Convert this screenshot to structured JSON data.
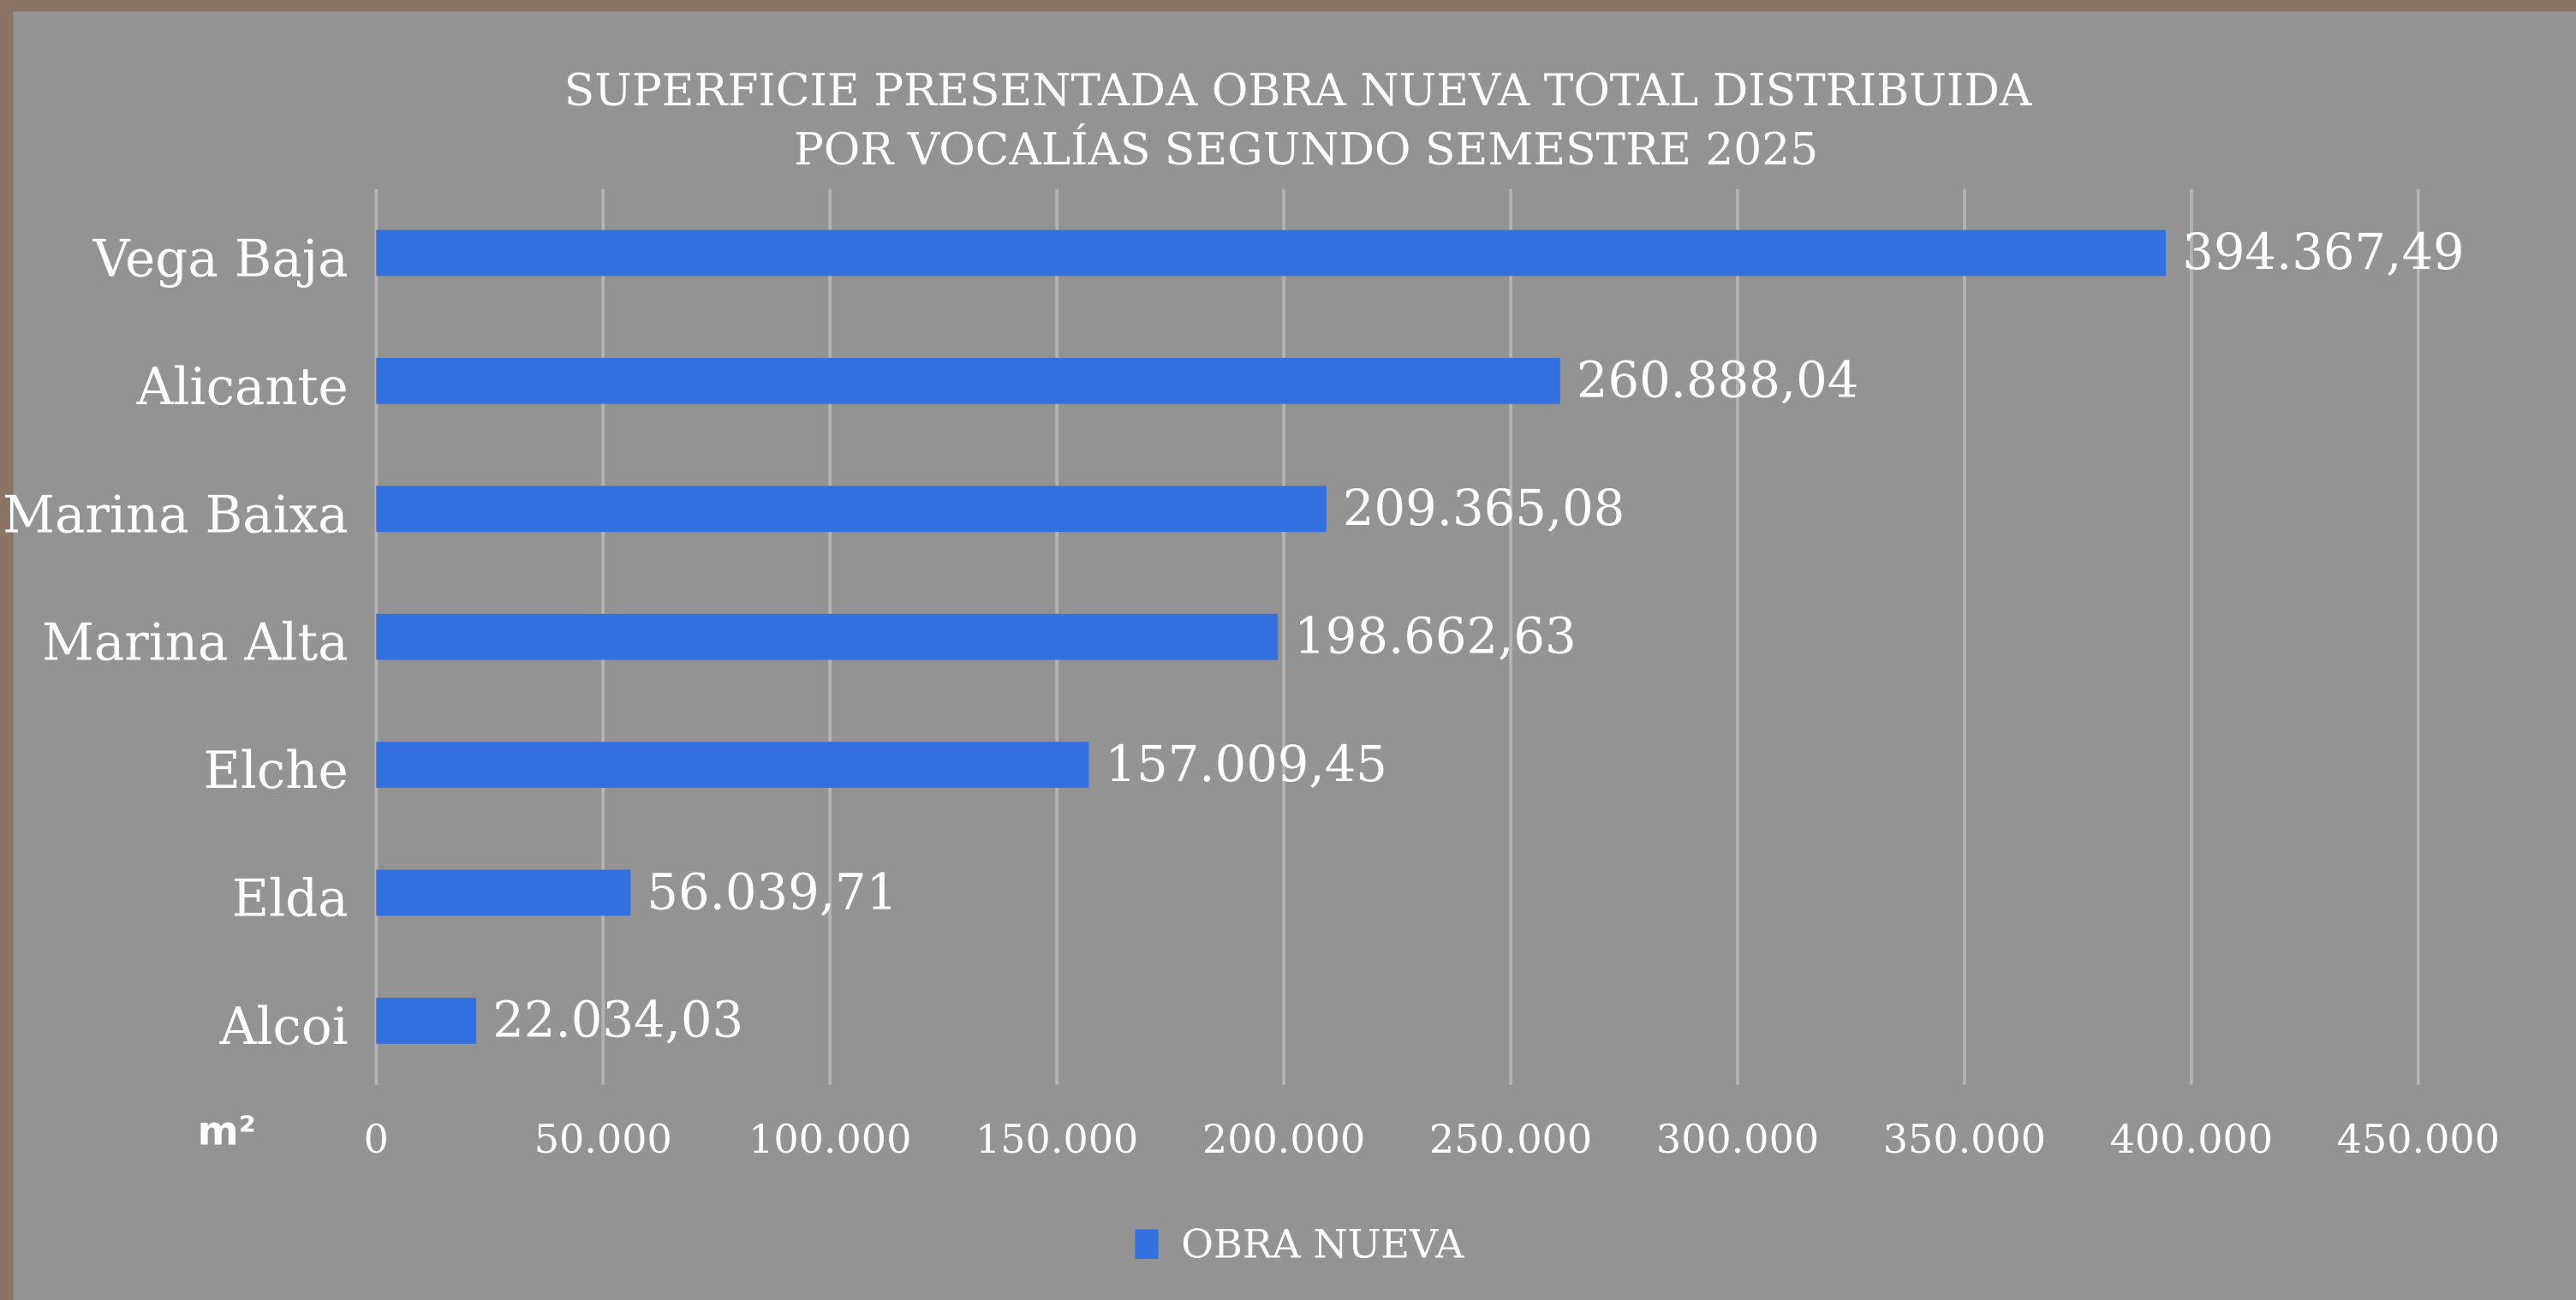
{
  "chart_data": {
    "type": "hbar",
    "title": [
      "SUPERFICIE PRESENTADA OBRA NUEVA TOTAL DISTRIBUIDA",
      "POR VOCALÍAS SEGUNDO SEMESTRE 2025"
    ],
    "x_label": "m²",
    "categories": [
      "Vega Baja",
      "Alicante",
      "Marina Baixa",
      "Marina Alta",
      "Elche",
      "Elda",
      "Alcoi"
    ],
    "series": [
      {
        "name": "OBRA NUEVA",
        "color": "#3170de",
        "values": [
          394367.49,
          260888.04,
          209365.08,
          198662.63,
          157009.45,
          56039.71,
          22034.03
        ],
        "value_labels": [
          "394.367,49",
          "260.888,04",
          "209.365,08",
          "198.662,63",
          "157.009,45",
          "56.039,71",
          "22.034,03"
        ]
      }
    ],
    "xlim": [
      0,
      450000
    ],
    "xticks": [
      0,
      {
        "value": 50000,
        "label": "50.000"
      },
      {
        "value": 100000,
        "label": "100.000"
      },
      {
        "value": 150000,
        "label": "150.000"
      },
      {
        "value": 200000,
        "label": "200.000"
      },
      {
        "value": 250000,
        "label": "250.000"
      },
      {
        "value": 300000,
        "label": "300.000"
      },
      {
        "value": 350000,
        "label": "350.000"
      },
      {
        "value": 400000,
        "label": "400.000"
      },
      {
        "value": 450000,
        "label": "450.000"
      }
    ],
    "grid": true,
    "legend": "bottom"
  }
}
